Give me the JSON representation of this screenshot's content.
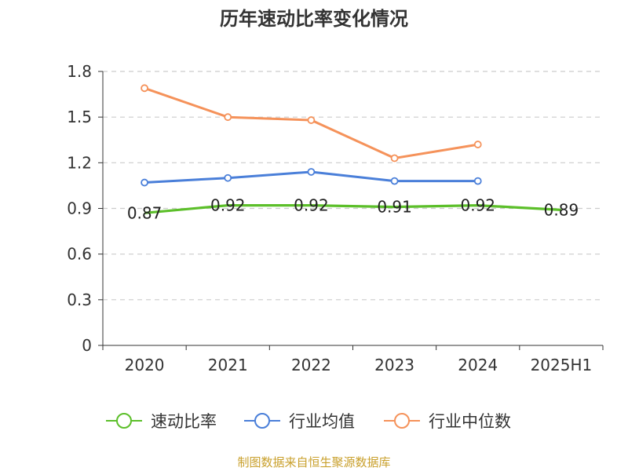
{
  "chart_data": {
    "type": "line",
    "title": "历年速动比率变化情况",
    "categories": [
      "2020",
      "2021",
      "2022",
      "2023",
      "2024",
      "2025H1"
    ],
    "yticks": [
      "0",
      "0.3",
      "0.6",
      "0.9",
      "1.2",
      "1.5",
      "1.8"
    ],
    "ylim": [
      0,
      1.8
    ],
    "grid": true,
    "legend_position": "bottom",
    "series": [
      {
        "name": "速动比率",
        "color": "#5cbf2a",
        "values": [
          0.87,
          0.92,
          0.92,
          0.91,
          0.92,
          0.89
        ],
        "labels": [
          "0.87",
          "0.92",
          "0.92",
          "0.91",
          "0.92",
          "0.89"
        ]
      },
      {
        "name": "行业均值",
        "color": "#4a7fd9",
        "values": [
          1.07,
          1.1,
          1.14,
          1.08,
          1.08,
          null
        ]
      },
      {
        "name": "行业中位数",
        "color": "#f5925a",
        "values": [
          1.69,
          1.5,
          1.48,
          1.23,
          1.32,
          null
        ]
      }
    ]
  },
  "footer": "制图数据来自恒生聚源数据库"
}
